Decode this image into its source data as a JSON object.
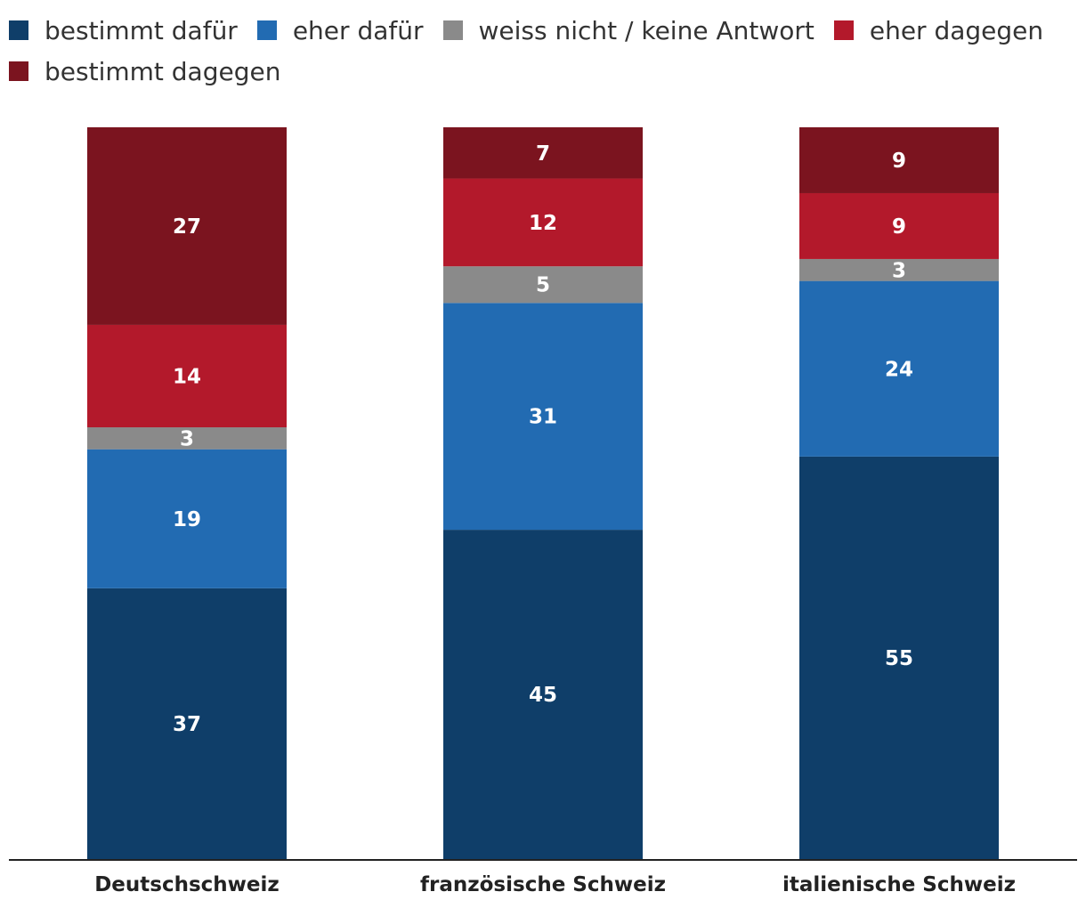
{
  "chart_data": {
    "type": "bar",
    "stacked": true,
    "categories": [
      "Deutschschweiz",
      "französische Schweiz",
      "italienische Schweiz"
    ],
    "series": [
      {
        "name": "bestimmt dafür",
        "color": "#0f3e69",
        "values": [
          37,
          45,
          55
        ]
      },
      {
        "name": "eher dafür",
        "color": "#226bb2",
        "values": [
          19,
          31,
          24
        ]
      },
      {
        "name": "weiss nicht / keine Antwort",
        "color": "#8a8a8a",
        "values": [
          3,
          5,
          3
        ]
      },
      {
        "name": "eher dagegen",
        "color": "#b3192b",
        "values": [
          14,
          12,
          9
        ]
      },
      {
        "name": "bestimmt dagegen",
        "color": "#7b141f",
        "values": [
          27,
          7,
          9
        ]
      }
    ],
    "ylim": [
      0,
      100
    ],
    "grid": false,
    "legend_position": "top-left",
    "title": "",
    "xlabel": "",
    "ylabel": ""
  }
}
